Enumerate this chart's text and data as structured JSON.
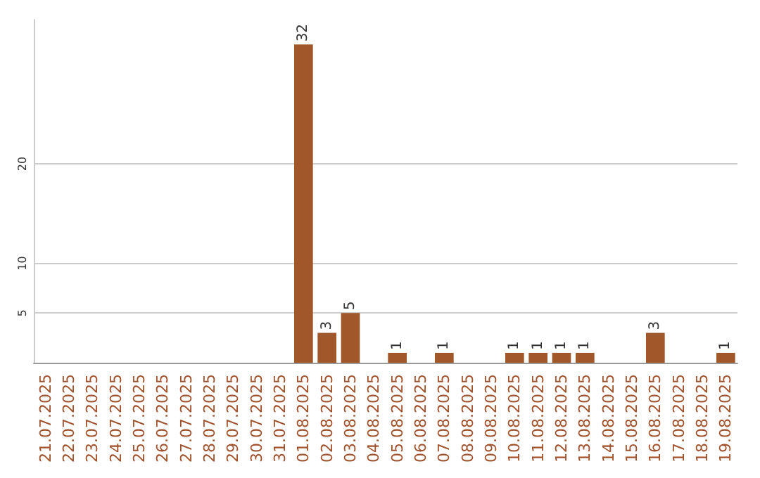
{
  "chart_data": {
    "type": "bar",
    "categories": [
      "21.07.2025",
      "22.07.2025",
      "23.07.2025",
      "24.07.2025",
      "25.07.2025",
      "26.07.2025",
      "27.07.2025",
      "28.07.2025",
      "29.07.2025",
      "30.07.2025",
      "31.07.2025",
      "01.08.2025",
      "02.08.2025",
      "03.08.2025",
      "04.08.2025",
      "05.08.2025",
      "06.08.2025",
      "07.08.2025",
      "08.08.2025",
      "09.08.2025",
      "10.08.2025",
      "11.08.2025",
      "12.08.2025",
      "13.08.2025",
      "14.08.2025",
      "15.08.2025",
      "16.08.2025",
      "17.08.2025",
      "18.08.2025",
      "19.08.2025"
    ],
    "values": [
      0,
      0,
      0,
      0,
      0,
      0,
      0,
      0,
      0,
      0,
      0,
      32,
      3,
      5,
      0,
      1,
      0,
      1,
      0,
      0,
      1,
      1,
      1,
      1,
      0,
      0,
      3,
      0,
      0,
      1
    ],
    "value_labels": [
      null,
      null,
      null,
      null,
      null,
      null,
      null,
      null,
      null,
      null,
      null,
      "32",
      "3",
      "5",
      null,
      "1",
      null,
      "1",
      null,
      null,
      "1",
      "1",
      "1",
      "1",
      null,
      null,
      "3",
      null,
      null,
      "1"
    ],
    "color": "#a0582a",
    "ylim": [
      0,
      34.5
    ],
    "yticks": [
      5,
      10,
      20
    ],
    "grid": "y"
  }
}
